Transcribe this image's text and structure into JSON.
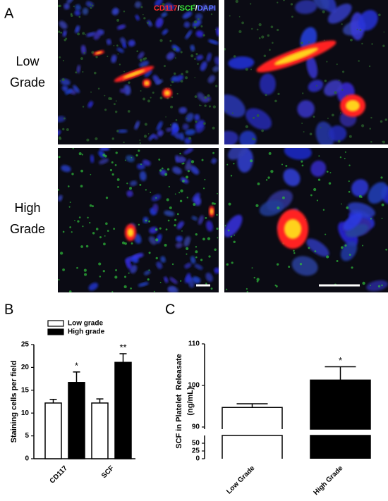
{
  "panel_a": {
    "label": "A",
    "stain_legend": {
      "parts": [
        "CD117",
        "/",
        "SCF",
        "/",
        "DAPI"
      ],
      "colors": [
        "#ff2a2a",
        "#ffffff",
        "#39e639",
        "#ffffff",
        "#5b6cff"
      ]
    },
    "row_labels": [
      "Low Grade",
      "High Grade"
    ]
  },
  "chart_data": [
    {
      "type": "bar",
      "panel_label": "B",
      "y_label": "Staining cells per field",
      "categories": [
        "CD117",
        "SCF"
      ],
      "series": [
        {
          "name": "Low grade",
          "color": "#ffffff",
          "values": [
            12.2,
            12.2
          ],
          "errors": [
            0.8,
            0.9
          ]
        },
        {
          "name": "High grade",
          "color": "#000000",
          "values": [
            16.7,
            21.1
          ],
          "errors": [
            2.3,
            1.9
          ]
        }
      ],
      "significance": [
        "*",
        "**"
      ],
      "ylim": [
        0,
        25
      ],
      "yticks": [
        0,
        5,
        10,
        15,
        20,
        25
      ]
    },
    {
      "type": "bar",
      "panel_label": "C",
      "y_label": [
        "SCF in Platelet  Releasate",
        "(ng/mL)"
      ],
      "categories": [
        "Low Grade",
        "High Grade"
      ],
      "values": [
        94.7,
        101.3
      ],
      "errors": [
        0.9,
        3.2
      ],
      "colors": [
        "#ffffff",
        "#000000"
      ],
      "significance": [
        null,
        "*"
      ],
      "ylim": [
        0,
        110
      ],
      "axis_break": [
        75,
        90
      ],
      "yticks": [
        0,
        25,
        50,
        90,
        100,
        110
      ]
    }
  ]
}
